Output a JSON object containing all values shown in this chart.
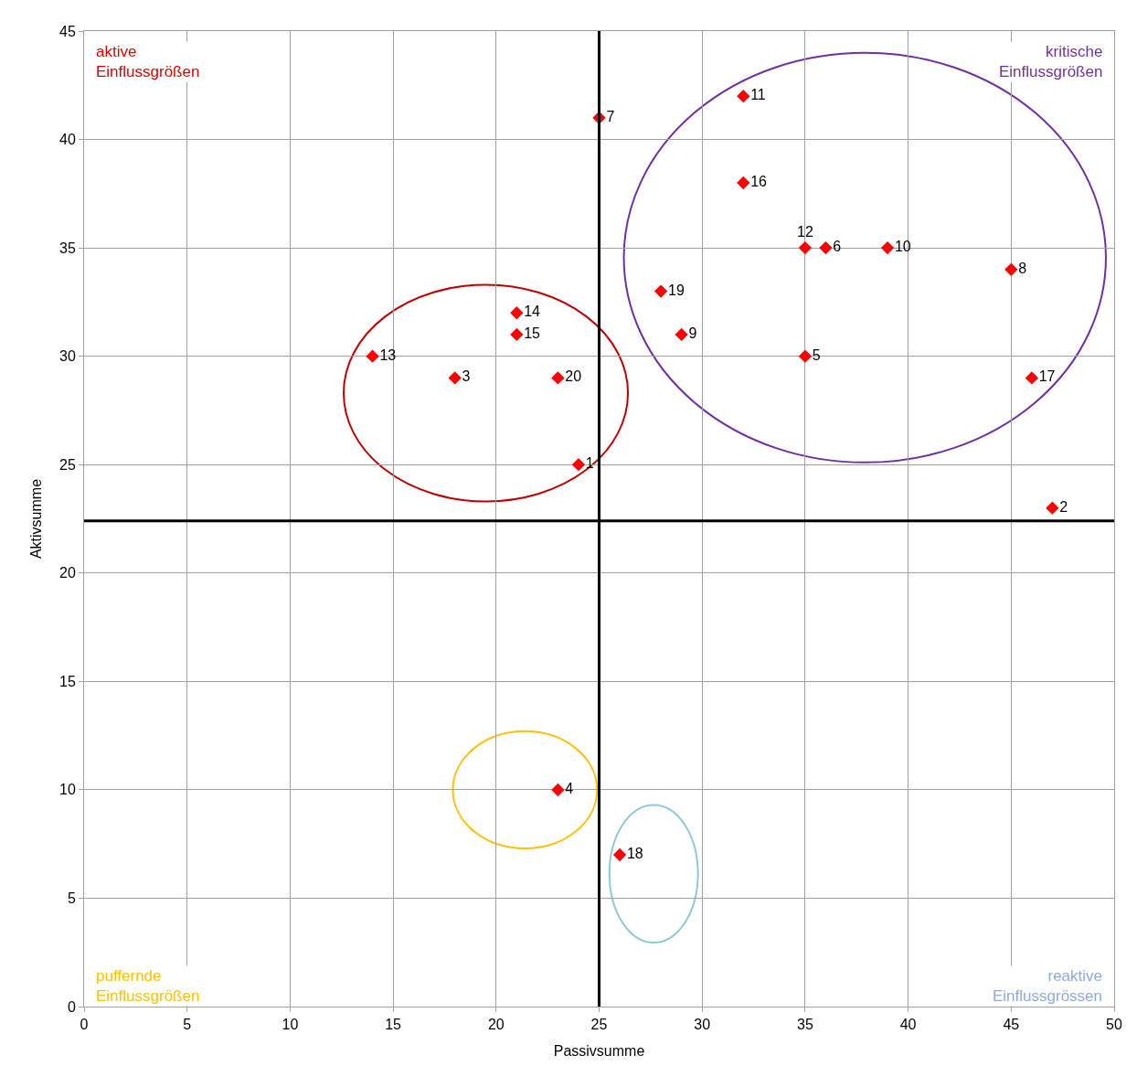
{
  "chart_data": {
    "type": "scatter",
    "xlabel": "Passivsumme",
    "ylabel": "Aktivsumme",
    "series": [
      {
        "name": "1",
        "color": "#ff0000",
        "x": [
          24
        ],
        "values": [
          25
        ]
      },
      {
        "name": "2",
        "color": "#ff0000",
        "x": [
          47
        ],
        "values": [
          23
        ]
      },
      {
        "name": "3",
        "color": "#ff0000",
        "x": [
          18
        ],
        "values": [
          29
        ]
      },
      {
        "name": "4",
        "color": "#ff0000",
        "x": [
          23
        ],
        "values": [
          10
        ]
      },
      {
        "name": "5",
        "color": "#ff0000",
        "x": [
          35
        ],
        "values": [
          30
        ]
      },
      {
        "name": "6",
        "color": "#ff0000",
        "x": [
          36
        ],
        "values": [
          35
        ]
      },
      {
        "name": "7",
        "color": "#ff0000",
        "x": [
          25
        ],
        "values": [
          41
        ]
      },
      {
        "name": "8",
        "color": "#ff0000",
        "x": [
          45
        ],
        "values": [
          34
        ]
      },
      {
        "name": "9",
        "color": "#ff0000",
        "x": [
          29
        ],
        "values": [
          31
        ]
      },
      {
        "name": "10",
        "color": "#ff0000",
        "x": [
          39
        ],
        "values": [
          35
        ]
      },
      {
        "name": "11",
        "color": "#ff0000",
        "x": [
          32
        ],
        "values": [
          42
        ]
      },
      {
        "name": "12",
        "color": "#ff0000",
        "x": [
          35
        ],
        "values": [
          35
        ]
      },
      {
        "name": "13",
        "color": "#ff0000",
        "x": [
          14
        ],
        "values": [
          30
        ]
      },
      {
        "name": "14",
        "color": "#ff0000",
        "x": [
          21
        ],
        "values": [
          32
        ]
      },
      {
        "name": "15",
        "color": "#ff0000",
        "x": [
          21
        ],
        "values": [
          31
        ]
      },
      {
        "name": "16",
        "color": "#ff0000",
        "x": [
          32
        ],
        "values": [
          38
        ]
      },
      {
        "name": "17",
        "color": "#ff0000",
        "x": [
          46
        ],
        "values": [
          29
        ]
      },
      {
        "name": "18",
        "color": "#ff0000",
        "x": [
          26
        ],
        "values": [
          7
        ]
      },
      {
        "name": "19",
        "color": "#ff0000",
        "x": [
          28
        ],
        "values": [
          33
        ]
      },
      {
        "name": "20",
        "color": "#ff0000",
        "x": [
          23
        ],
        "values": [
          29
        ]
      }
    ],
    "marker": "diamond",
    "xlim": [
      0,
      50
    ],
    "xticks": [
      0,
      5,
      10,
      15,
      20,
      25,
      30,
      35,
      40,
      45,
      50
    ],
    "ylim": [
      0,
      45
    ],
    "yticks": [
      0,
      5,
      10,
      15,
      20,
      25,
      30,
      35,
      40,
      45
    ],
    "grid": true,
    "ref_lines": [
      {
        "axis": "x",
        "value": 25,
        "color": "#000000"
      },
      {
        "axis": "y",
        "value": 22.4,
        "color": "#000000"
      }
    ],
    "annotations": [
      "aktive\nEinflussgrößen",
      "kritische\nEinflussgrößen",
      "puffernde\nEinflussgrößen",
      "reaktive\nEinflussgrössen"
    ]
  }
}
